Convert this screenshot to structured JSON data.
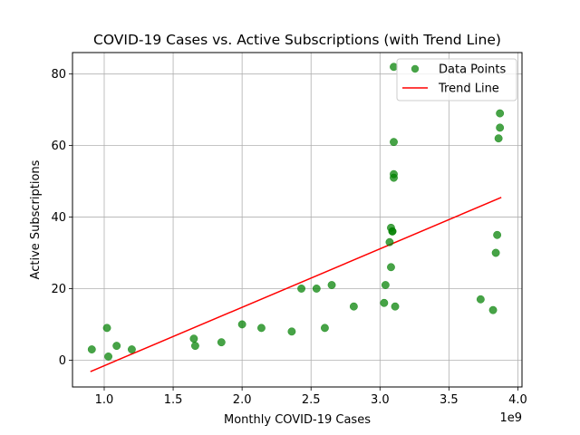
{
  "chart_data": {
    "type": "scatter",
    "title": "COVID-19 Cases vs. Active Subscriptions (with Trend Line)",
    "xlabel": "Monthly COVID-19 Cases",
    "ylabel": "Active Subscriptions",
    "x_offset_label": "1e9",
    "x_scale": 1000000000,
    "xlim": [
      0.77,
      4.03
    ],
    "ylim": [
      -7.5,
      86.0
    ],
    "x_ticks": [
      1.0,
      1.5,
      2.0,
      2.5,
      3.0,
      3.5,
      4.0
    ],
    "x_tick_labels": [
      "1.0",
      "1.5",
      "2.0",
      "2.5",
      "3.0",
      "3.5",
      "4.0"
    ],
    "y_ticks": [
      0,
      20,
      40,
      60,
      80
    ],
    "y_tick_labels": [
      "0",
      "20",
      "40",
      "60",
      "80"
    ],
    "grid": true,
    "legend_position": "top-right",
    "colors": {
      "points": "#008000",
      "trend": "#ff0000",
      "grid": "#b0b0b0"
    },
    "series": [
      {
        "name": "Data Points",
        "kind": "scatter",
        "points": [
          [
            0.91,
            3
          ],
          [
            1.02,
            9
          ],
          [
            1.03,
            1
          ],
          [
            1.09,
            4
          ],
          [
            1.2,
            3
          ],
          [
            1.65,
            6
          ],
          [
            1.66,
            4
          ],
          [
            1.85,
            5
          ],
          [
            2.0,
            10
          ],
          [
            2.14,
            9
          ],
          [
            2.36,
            8
          ],
          [
            2.43,
            20
          ],
          [
            2.54,
            20
          ],
          [
            2.6,
            9
          ],
          [
            2.65,
            21
          ],
          [
            2.81,
            15
          ],
          [
            3.03,
            16
          ],
          [
            3.04,
            21
          ],
          [
            3.07,
            33
          ],
          [
            3.08,
            26
          ],
          [
            3.08,
            37
          ],
          [
            3.09,
            36
          ],
          [
            3.09,
            36
          ],
          [
            3.1,
            52
          ],
          [
            3.1,
            51
          ],
          [
            3.1,
            61
          ],
          [
            3.1,
            82
          ],
          [
            3.11,
            15
          ],
          [
            3.73,
            17
          ],
          [
            3.82,
            14
          ],
          [
            3.84,
            30
          ],
          [
            3.85,
            35
          ],
          [
            3.86,
            62
          ],
          [
            3.87,
            65
          ],
          [
            3.87,
            69
          ]
        ]
      },
      {
        "name": "Trend Line",
        "kind": "line",
        "points": [
          [
            0.9,
            -3.2
          ],
          [
            3.88,
            45.5
          ]
        ]
      }
    ]
  }
}
